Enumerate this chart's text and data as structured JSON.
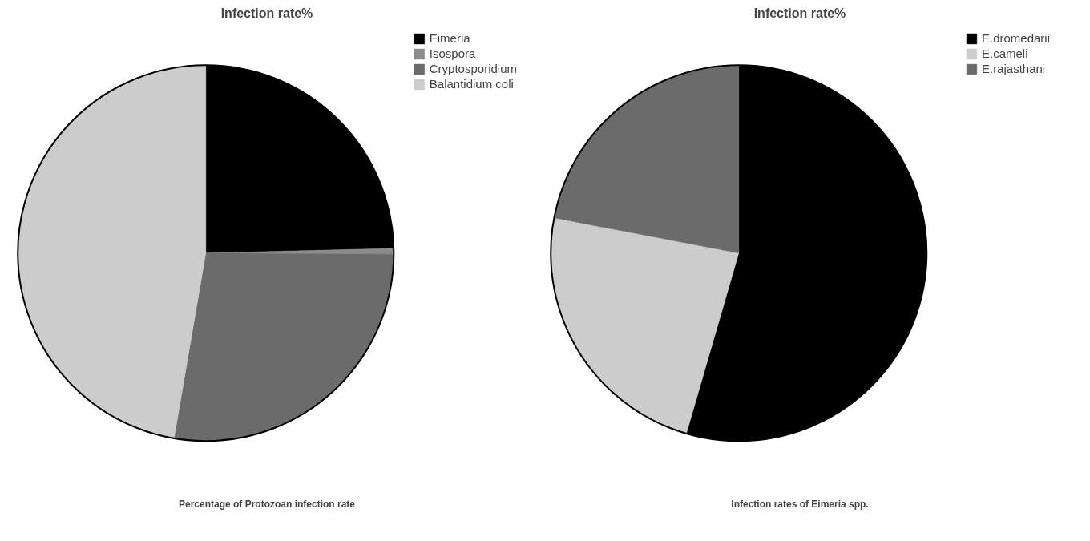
{
  "chart_data": [
    {
      "type": "pie",
      "title": "Infection rate%",
      "xlabel": "Percentage of Protozoan infection rate",
      "categories": [
        "Eimeria",
        "Isospora",
        "Cryptosporidium",
        "Balantidium coli"
      ],
      "values": [
        24.6,
        0.5,
        27.6,
        47.3
      ],
      "colors": [
        "#000000",
        "#8c8c8c",
        "#6b6b6b",
        "#cccccc"
      ],
      "legend": "top right"
    },
    {
      "type": "pie",
      "title": "Infection rate%",
      "xlabel": "Infection rates of Eimeria spp.",
      "categories": [
        "E.dromedarii",
        "E.cameli",
        "E.rajasthani"
      ],
      "values": [
        54.5,
        23.5,
        22.0
      ],
      "colors": [
        "#000000",
        "#cccccc",
        "#6b6b6b"
      ],
      "legend": "top right"
    }
  ]
}
